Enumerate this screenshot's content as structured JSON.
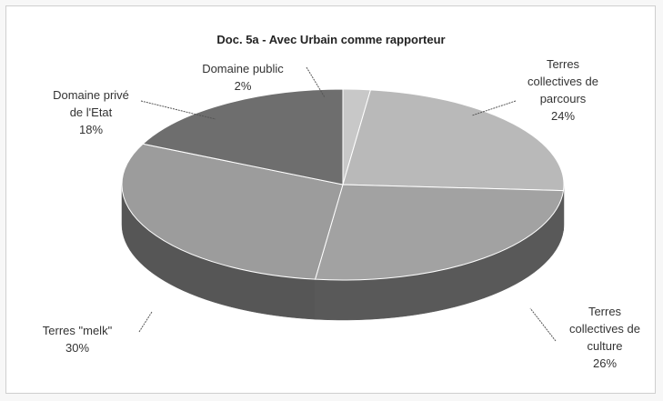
{
  "chart_data": {
    "type": "pie",
    "title": "Doc. 5a - Avec Urbain comme rapporteur",
    "slices": [
      {
        "label": "Domaine public",
        "value": 2,
        "label_text": "2%",
        "color": "#c8c8c8"
      },
      {
        "label": "Terres collectives de parcours",
        "value": 24,
        "label_text": "24%",
        "color": "#b9b9b9"
      },
      {
        "label": "Terres collectives de culture",
        "value": 26,
        "label_text": "26%",
        "color": "#a2a2a2"
      },
      {
        "label": "Terres \"melk\"",
        "value": 30,
        "label_text": "30%",
        "color": "#9c9c9c"
      },
      {
        "label": "Domaine privé de l'Etat",
        "value": 18,
        "label_text": "18%",
        "color": "#6e6e6e"
      }
    ],
    "legend": "none"
  }
}
